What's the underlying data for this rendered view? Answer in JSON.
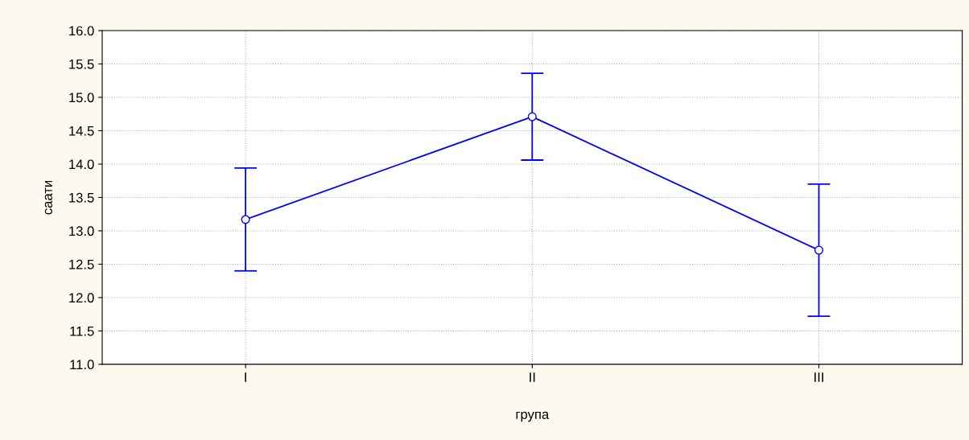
{
  "chart_data": {
    "type": "line",
    "xlabel": "група",
    "ylabel": "саати",
    "categories": [
      "I",
      "II",
      "III"
    ],
    "series": [
      {
        "color": "#0000ff",
        "values": [
          13.17,
          14.71,
          12.71
        ],
        "errors": [
          0.77,
          0.65,
          0.99
        ]
      }
    ],
    "ylim": [
      11.0,
      16.0
    ],
    "yticks": [
      {
        "value": 11.0,
        "label": "11.0"
      },
      {
        "value": 11.5,
        "label": "11.5"
      },
      {
        "value": 12.0,
        "label": "12.0"
      },
      {
        "value": 12.5,
        "label": "12.5"
      },
      {
        "value": 13.0,
        "label": "13.0"
      },
      {
        "value": 13.5,
        "label": "13.5"
      },
      {
        "value": 14.0,
        "label": "14.0"
      },
      {
        "value": 14.5,
        "label": "14.5"
      },
      {
        "value": 15.0,
        "label": "15.0"
      },
      {
        "value": 15.5,
        "label": "15.5"
      },
      {
        "value": 16.0,
        "label": "16.0"
      }
    ],
    "grid": true,
    "marker": "circle",
    "line_style": "solid",
    "legend": false
  }
}
